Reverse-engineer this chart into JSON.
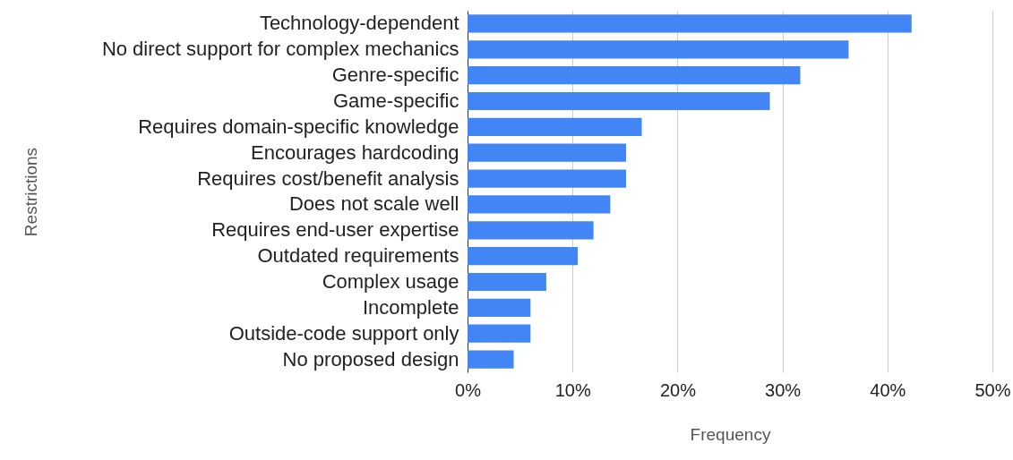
{
  "chart_data": {
    "type": "bar",
    "orientation": "horizontal",
    "xlabel": "Frequency",
    "ylabel": "Restrictions",
    "categories": [
      "Technology-dependent",
      "No direct support for complex mechanics",
      "Genre-specific",
      "Game-specific",
      "Requires domain-specific knowledge",
      "Encourages hardcoding",
      "Requires cost/benefit analysis",
      "Does not scale well",
      "Requires end-user expertise",
      "Outdated requirements",
      "Complex usage",
      "Incomplete",
      "Outside-code support only",
      "No proposed design"
    ],
    "values": [
      42.3,
      36.3,
      31.7,
      28.8,
      16.6,
      15.1,
      15.1,
      13.6,
      12.0,
      10.5,
      7.5,
      6.0,
      6.0,
      4.4
    ],
    "color": "#4285f4",
    "xlim": [
      0,
      50
    ],
    "xticks": [
      {
        "value": 0,
        "label": "0%"
      },
      {
        "value": 10,
        "label": "10%"
      },
      {
        "value": 20,
        "label": "20%"
      },
      {
        "value": 30,
        "label": "30%"
      },
      {
        "value": 40,
        "label": "40%"
      },
      {
        "value": 50,
        "label": "50%"
      }
    ],
    "grid": "x"
  }
}
